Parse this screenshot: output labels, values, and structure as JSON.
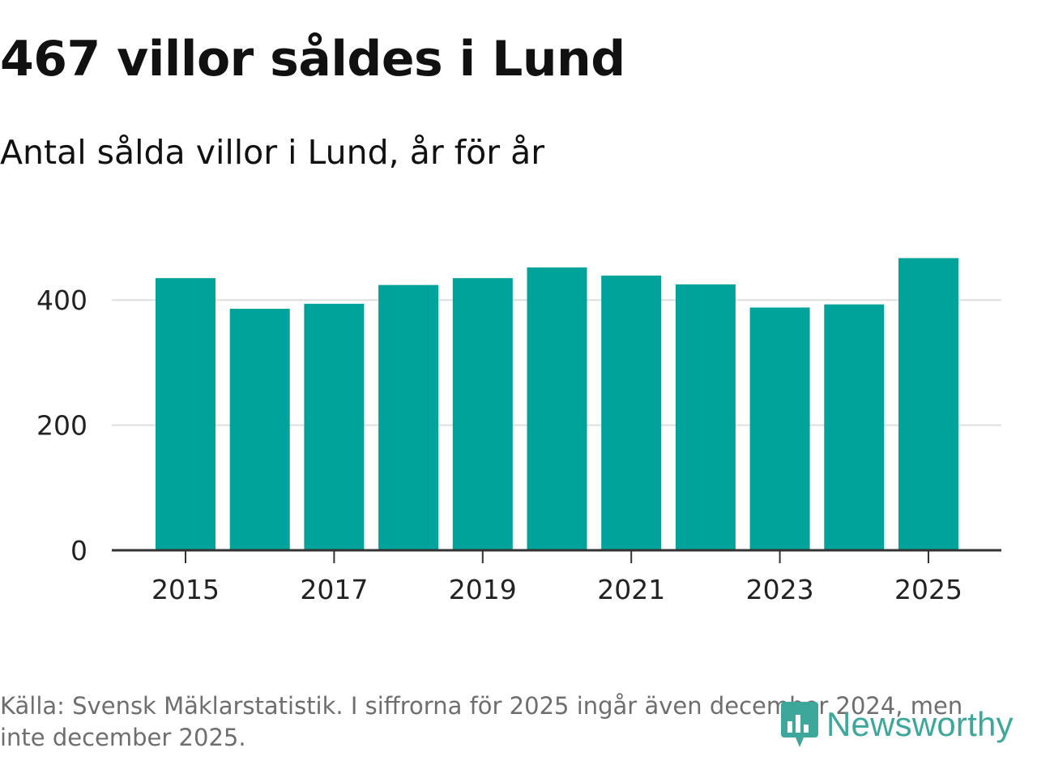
{
  "header": {
    "title": "467 villor såldes i Lund",
    "subtitle": "Antal sålda villor i Lund, år för år"
  },
  "footer": {
    "source": "Källa: Svensk Mäklarstatistik. I siffrorna för 2025 ingår även december 2024, men inte december 2025.",
    "logo_text": "Newsworthy"
  },
  "colors": {
    "bar": "#00a39a",
    "grid": "#dedede",
    "axis": "#333333",
    "logo": "#3ea79b"
  },
  "chart_data": {
    "type": "bar",
    "title": "467 villor såldes i Lund",
    "subtitle": "Antal sålda villor i Lund, år för år",
    "xlabel": "",
    "ylabel": "",
    "categories": [
      "2015",
      "2016",
      "2017",
      "2018",
      "2019",
      "2020",
      "2021",
      "2022",
      "2023",
      "2024",
      "2025"
    ],
    "values": [
      435,
      386,
      394,
      424,
      435,
      452,
      439,
      425,
      388,
      393,
      467
    ],
    "ylim": [
      0,
      500
    ],
    "yticks": [
      0,
      200,
      400
    ],
    "xtick_labels": [
      "2015",
      "2017",
      "2019",
      "2021",
      "2023",
      "2025"
    ],
    "grid": true,
    "legend": "none"
  }
}
